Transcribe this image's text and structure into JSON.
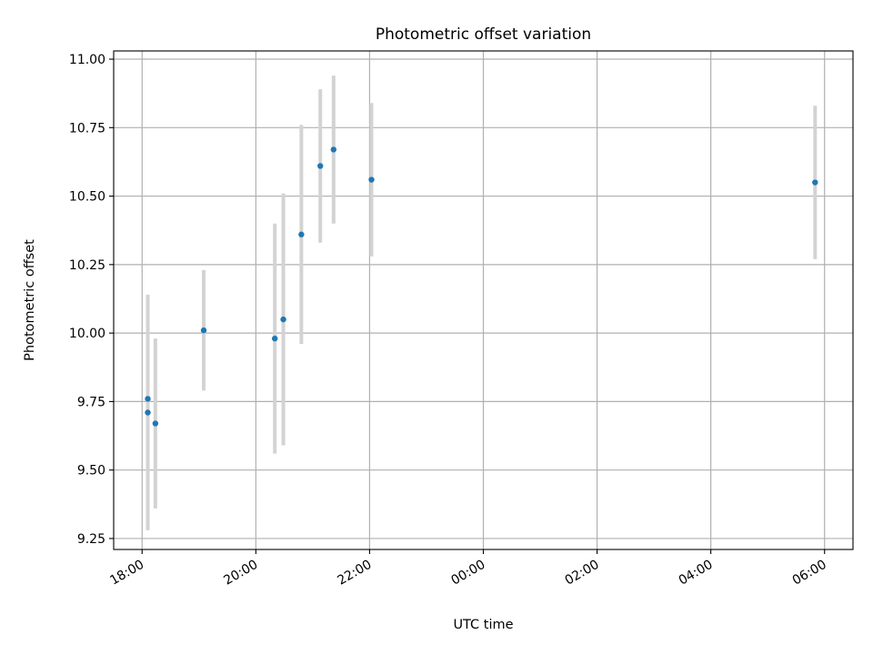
{
  "chart_data": {
    "type": "scatter",
    "title": "Photometric offset variation",
    "xlabel": "UTC time",
    "ylabel": "Photometric offset",
    "x_is_time": true,
    "xlim": [
      "17:30",
      "06:30 +1d"
    ],
    "ylim": [
      9.21,
      11.03
    ],
    "grid": true,
    "x_ticks": [
      "18:00",
      "20:00",
      "22:00",
      "00:00",
      "02:00",
      "04:00",
      "06:00"
    ],
    "y_ticks": [
      "9.25",
      "9.50",
      "9.75",
      "10.00",
      "10.25",
      "10.50",
      "10.75",
      "11.00"
    ],
    "colors": {
      "points": "#1f77b4",
      "error_bars": "#d3d3d3",
      "grid": "#b0b0b0"
    },
    "points": [
      {
        "x": "18:06",
        "y": 9.76,
        "err": 0
      },
      {
        "x": "18:06",
        "y": 9.71,
        "err": 0.43
      },
      {
        "x": "18:14",
        "y": 9.67,
        "err": 0.31
      },
      {
        "x": "19:05",
        "y": 10.01,
        "err": 0.22
      },
      {
        "x": "20:20",
        "y": 9.98,
        "err": 0.42
      },
      {
        "x": "20:29",
        "y": 10.05,
        "err": 0.46
      },
      {
        "x": "20:48",
        "y": 10.36,
        "err": 0.4
      },
      {
        "x": "21:08",
        "y": 10.61,
        "err": 0.28
      },
      {
        "x": "21:22",
        "y": 10.67,
        "err": 0.27
      },
      {
        "x": "22:02",
        "y": 10.56,
        "err": 0.28
      },
      {
        "x": "05:50 +1d",
        "y": 10.55,
        "err": 0.28
      }
    ]
  }
}
